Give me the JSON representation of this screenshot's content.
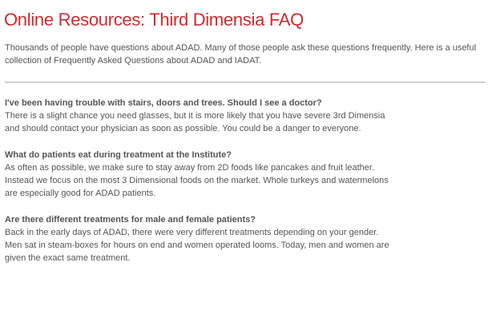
{
  "header": {
    "title": "Online Resources: Third Dimensia FAQ"
  },
  "intro": {
    "text": "Thousands of people have questions about ADAD.  Many of those people ask these questions frequently.  Here is a useful collection of Frequently Asked Questions about ADAD and IADAT."
  },
  "faq": [
    {
      "question": "I've been having trouble with stairs, doors and trees.  Should I see a doctor?",
      "answer": "There is a slight chance you need glasses, but it is more likely that you have severe 3rd Dimensia and should contact your physician as soon as possible.  You could be a danger to everyone."
    },
    {
      "question": "What do patients eat during treatment at the Institute?",
      "answer": "As often as possible, we make sure to stay away from 2D foods like pancakes and fruit leather. Instead we focus on the most 3 Dimensional foods on the market.  Whole turkeys and watermelons are especially good for ADAD patients."
    },
    {
      "question": "Are there different treatments for male and female patients?",
      "answer": "Back in the early days of ADAD, there were very different treatments depending on your gender. Men sat in steam-boxes for hours on end and women operated looms.  Today, men and women are given the exact same treatment."
    }
  ],
  "colors": {
    "title": "#d12b2e",
    "body_text": "#555555",
    "divider": "#cfcfcf",
    "background": "#ffffff"
  }
}
